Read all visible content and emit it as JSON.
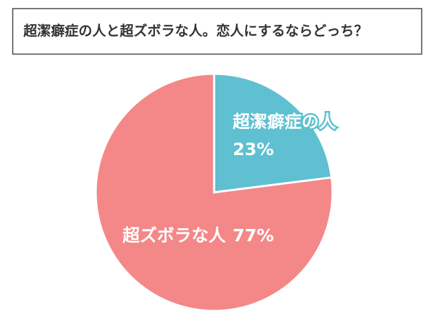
{
  "chart_data": {
    "type": "pie",
    "title": "超潔癖症の人と超ズボラな人。恋人にするならどっち？",
    "categories": [
      "超潔癖症の人",
      "超ズボラな人"
    ],
    "values": [
      23,
      77
    ],
    "value_labels": [
      "23%",
      "77%"
    ],
    "colors": [
      "#5ec0d1",
      "#f48888"
    ]
  }
}
